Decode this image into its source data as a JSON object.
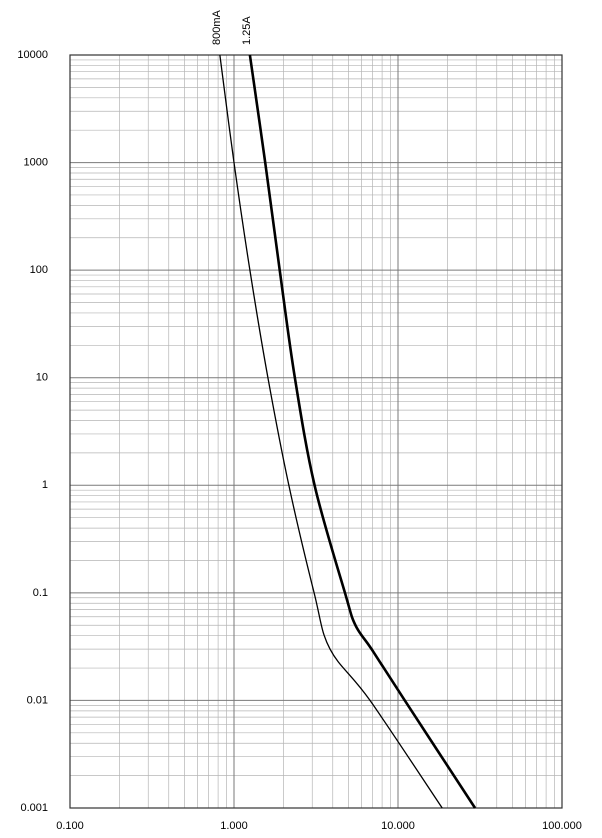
{
  "chart_data": {
    "type": "line",
    "xscale": "log",
    "yscale": "log",
    "grid": true,
    "xlim": [
      0.1,
      100
    ],
    "ylim": [
      0.001,
      10000
    ],
    "xticks": [
      {
        "value": 0.1,
        "label": "0.100"
      },
      {
        "value": 1,
        "label": "1.000"
      },
      {
        "value": 10,
        "label": "10.000"
      },
      {
        "value": 100,
        "label": "100.000"
      }
    ],
    "yticks": [
      10000,
      1000,
      100,
      10,
      1,
      0.1,
      0.01,
      0.001
    ],
    "series": [
      {
        "name": "800mA",
        "color": "#000000",
        "x": [
          0.82,
          1.0,
          1.25,
          1.61,
          2.16,
          3.08,
          3.85,
          6.75,
          18.6
        ],
        "values": [
          10000,
          1000,
          100,
          10,
          1,
          0.1,
          0.03,
          0.01,
          0.001
        ]
      },
      {
        "name": "1.25A",
        "color": "#000000",
        "x": [
          1.25,
          1.55,
          1.9,
          2.35,
          3.1,
          4.75,
          5.5,
          6.9,
          11,
          29.5
        ],
        "values": [
          10000,
          1000,
          100,
          10,
          1,
          0.1,
          0.05,
          0.03,
          0.01,
          0.001
        ]
      }
    ]
  }
}
